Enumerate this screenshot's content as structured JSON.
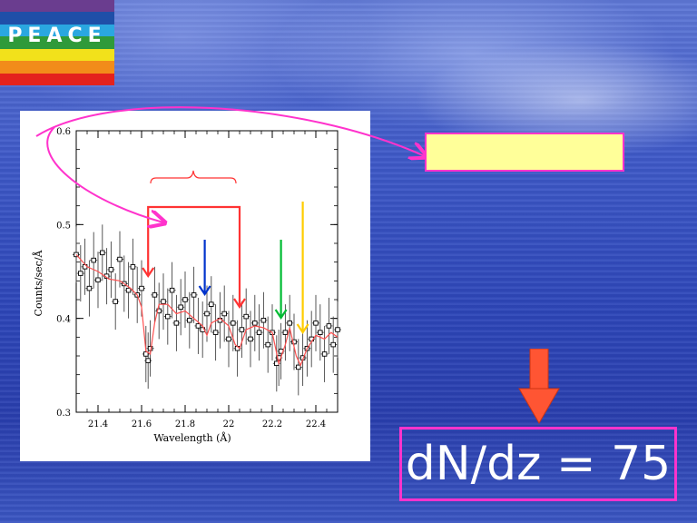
{
  "flag": {
    "word": "PEACE",
    "bands": [
      "#6a3d8f",
      "#1f4fa8",
      "#2aa7e0",
      "#2f9a3a",
      "#f2e11b",
      "#f28c1a",
      "#e4221d"
    ]
  },
  "colors": {
    "magenta": "#ff33cc",
    "red_marker": "#ff3333",
    "blue_marker": "#0033cc",
    "green_marker": "#00bb33",
    "yellow_marker": "#ffcc00",
    "highlight_box": "#ffff99",
    "big_arrow": "#ff5533"
  },
  "result": {
    "text": "dN/dz = 75"
  },
  "chart_data": {
    "type": "scatter",
    "title": "",
    "xlabel": "Wavelength (Å)",
    "ylabel": "Counts/sec/Å",
    "xlim": [
      21.3,
      22.5
    ],
    "ylim": [
      0.3,
      0.6
    ],
    "xticks": [
      21.4,
      21.6,
      21.8,
      22,
      22.2,
      22.4
    ],
    "yticks": [
      0.3,
      0.4,
      0.5,
      0.6
    ],
    "xtick_labels": [
      "21.4",
      "21.6",
      "21.8",
      "22",
      "22.2",
      "22.4"
    ],
    "ytick_labels": [
      "0.3",
      "0.4",
      "0.5",
      "0.6"
    ],
    "grid": false,
    "series": [
      {
        "kind": "data-with-error-bars",
        "x": [
          21.3,
          21.32,
          21.34,
          21.36,
          21.38,
          21.4,
          21.42,
          21.44,
          21.46,
          21.48,
          21.5,
          21.52,
          21.54,
          21.56,
          21.58,
          21.6,
          21.62,
          21.63,
          21.64,
          21.66,
          21.68,
          21.7,
          21.72,
          21.74,
          21.76,
          21.78,
          21.8,
          21.82,
          21.84,
          21.86,
          21.88,
          21.9,
          21.92,
          21.94,
          21.96,
          21.98,
          22.0,
          22.02,
          22.04,
          22.06,
          22.08,
          22.1,
          22.12,
          22.14,
          22.16,
          22.18,
          22.2,
          22.22,
          22.23,
          22.24,
          22.26,
          22.28,
          22.3,
          22.32,
          22.34,
          22.36,
          22.38,
          22.4,
          22.42,
          22.44,
          22.46,
          22.48,
          22.5
        ],
        "y": [
          0.468,
          0.448,
          0.455,
          0.432,
          0.462,
          0.441,
          0.47,
          0.445,
          0.452,
          0.418,
          0.463,
          0.437,
          0.43,
          0.455,
          0.425,
          0.432,
          0.362,
          0.355,
          0.368,
          0.425,
          0.408,
          0.418,
          0.402,
          0.43,
          0.395,
          0.412,
          0.42,
          0.398,
          0.425,
          0.392,
          0.388,
          0.405,
          0.415,
          0.385,
          0.398,
          0.405,
          0.378,
          0.395,
          0.368,
          0.388,
          0.402,
          0.378,
          0.395,
          0.385,
          0.398,
          0.372,
          0.385,
          0.352,
          0.358,
          0.365,
          0.385,
          0.395,
          0.375,
          0.348,
          0.358,
          0.368,
          0.378,
          0.395,
          0.385,
          0.362,
          0.392,
          0.372,
          0.388
        ],
        "error": 0.03
      },
      {
        "kind": "model",
        "x": [
          21.3,
          21.35,
          21.4,
          21.45,
          21.5,
          21.55,
          21.58,
          21.6,
          21.62,
          21.64,
          21.66,
          21.68,
          21.72,
          21.76,
          21.8,
          21.84,
          21.88,
          21.9,
          21.92,
          21.96,
          22.0,
          22.03,
          22.05,
          22.08,
          22.12,
          22.16,
          22.2,
          22.23,
          22.26,
          22.28,
          22.31,
          22.33,
          22.36,
          22.4,
          22.44,
          22.47,
          22.5
        ],
        "y": [
          0.468,
          0.455,
          0.45,
          0.442,
          0.44,
          0.432,
          0.425,
          0.412,
          0.365,
          0.362,
          0.395,
          0.415,
          0.415,
          0.405,
          0.408,
          0.4,
          0.392,
          0.382,
          0.395,
          0.4,
          0.392,
          0.372,
          0.368,
          0.388,
          0.392,
          0.39,
          0.385,
          0.352,
          0.372,
          0.39,
          0.36,
          0.35,
          0.368,
          0.382,
          0.378,
          0.385,
          0.38
        ]
      }
    ],
    "markers": [
      {
        "color": "red",
        "x": 21.63
      },
      {
        "color": "blue",
        "x": 21.89
      },
      {
        "color": "red",
        "x": 22.05
      },
      {
        "color": "green",
        "x": 22.24
      },
      {
        "color": "yellow",
        "x": 22.34
      }
    ]
  }
}
